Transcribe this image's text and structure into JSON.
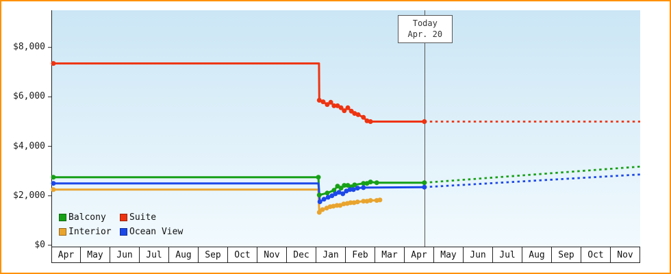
{
  "frame": {
    "border_color": "#ff9200",
    "background": "#ffffff"
  },
  "chart_data": {
    "type": "line",
    "title": "",
    "xlabel": "",
    "ylabel": "",
    "ylim": [
      0,
      9500
    ],
    "grid": false,
    "legend_position": "bottom-left",
    "plot_background": {
      "top": "#cbe6f5",
      "bottom": "#f2fafe"
    },
    "y_ticks": [
      {
        "value": 0,
        "label": "$0"
      },
      {
        "value": 2000,
        "label": "$2,000"
      },
      {
        "value": 4000,
        "label": "$4,000"
      },
      {
        "value": 6000,
        "label": "$6,000"
      },
      {
        "value": 8000,
        "label": "$8,000"
      }
    ],
    "x_labels": [
      "Apr",
      "May",
      "Jun",
      "Jul",
      "Aug",
      "Sep",
      "Oct",
      "Nov",
      "Dec",
      "Jan",
      "Feb",
      "Mar",
      "Apr",
      "May",
      "Jun",
      "Jul",
      "Aug",
      "Sep",
      "Oct",
      "Nov"
    ],
    "today": {
      "x": 12.67,
      "label1": "Today",
      "label2": "Apr. 20"
    },
    "series": [
      {
        "name": "Balcony",
        "color": "#17a017",
        "history": [
          [
            0.07,
            2750,
            1
          ],
          [
            9.07,
            2750,
            1
          ],
          [
            9.1,
            2030,
            1
          ],
          [
            9.37,
            2110,
            1
          ],
          [
            9.6,
            2220,
            1
          ],
          [
            9.72,
            2390,
            1
          ],
          [
            9.84,
            2310,
            1
          ],
          [
            9.95,
            2420,
            1
          ],
          [
            10.07,
            2420,
            1
          ],
          [
            10.19,
            2360,
            1
          ],
          [
            10.3,
            2440,
            1
          ],
          [
            10.6,
            2500,
            1
          ],
          [
            10.72,
            2500,
            1
          ],
          [
            10.84,
            2560,
            1
          ],
          [
            11.05,
            2530,
            1
          ],
          [
            12.67,
            2530,
            1
          ]
        ],
        "forecast": [
          [
            12.67,
            2530
          ],
          [
            20,
            3180
          ]
        ]
      },
      {
        "name": "Suite",
        "color": "#ee3311",
        "history": [
          [
            0.07,
            7350,
            1
          ],
          [
            9.09,
            7350,
            0
          ],
          [
            9.1,
            5860,
            1
          ],
          [
            9.23,
            5800,
            1
          ],
          [
            9.37,
            5690,
            1
          ],
          [
            9.49,
            5780,
            1
          ],
          [
            9.6,
            5640,
            1
          ],
          [
            9.72,
            5640,
            1
          ],
          [
            9.84,
            5560,
            1
          ],
          [
            9.95,
            5440,
            1
          ],
          [
            10.07,
            5560,
            1
          ],
          [
            10.19,
            5420,
            1
          ],
          [
            10.3,
            5330,
            1
          ],
          [
            10.42,
            5280,
            1
          ],
          [
            10.6,
            5170,
            1
          ],
          [
            10.72,
            5030,
            1
          ],
          [
            10.84,
            5000,
            1
          ],
          [
            12.67,
            5000,
            1
          ]
        ],
        "forecast": [
          [
            12.67,
            5000
          ],
          [
            20,
            5000
          ]
        ]
      },
      {
        "name": "Interior",
        "color": "#e9a42e",
        "history": [
          [
            0.07,
            2250,
            1
          ],
          [
            9.07,
            2250,
            0
          ],
          [
            9.1,
            1330,
            1
          ],
          [
            9.21,
            1440,
            1
          ],
          [
            9.35,
            1500,
            1
          ],
          [
            9.47,
            1560,
            1
          ],
          [
            9.58,
            1580,
            1
          ],
          [
            9.7,
            1610,
            1
          ],
          [
            9.81,
            1610,
            1
          ],
          [
            9.93,
            1670,
            1
          ],
          [
            10.05,
            1690,
            1
          ],
          [
            10.16,
            1720,
            1
          ],
          [
            10.28,
            1720,
            1
          ],
          [
            10.4,
            1750,
            1
          ],
          [
            10.6,
            1780,
            1
          ],
          [
            10.72,
            1780,
            1
          ],
          [
            10.84,
            1810,
            1
          ],
          [
            11.05,
            1810,
            1
          ],
          [
            11.16,
            1830,
            1
          ]
        ],
        "forecast": []
      },
      {
        "name": "Ocean View",
        "color": "#1c48e8",
        "history": [
          [
            0.07,
            2500,
            1
          ],
          [
            9.07,
            2500,
            0
          ],
          [
            9.12,
            1760,
            1
          ],
          [
            9.26,
            1860,
            1
          ],
          [
            9.4,
            1940,
            1
          ],
          [
            9.53,
            2000,
            1
          ],
          [
            9.65,
            2080,
            1
          ],
          [
            9.77,
            2140,
            1
          ],
          [
            9.9,
            2080,
            1
          ],
          [
            10.02,
            2190,
            1
          ],
          [
            10.14,
            2250,
            1
          ],
          [
            10.26,
            2250,
            1
          ],
          [
            10.4,
            2310,
            1
          ],
          [
            10.6,
            2330,
            1
          ],
          [
            12.67,
            2350,
            1
          ]
        ],
        "forecast": [
          [
            12.67,
            2350
          ],
          [
            20,
            2860
          ]
        ]
      }
    ]
  }
}
